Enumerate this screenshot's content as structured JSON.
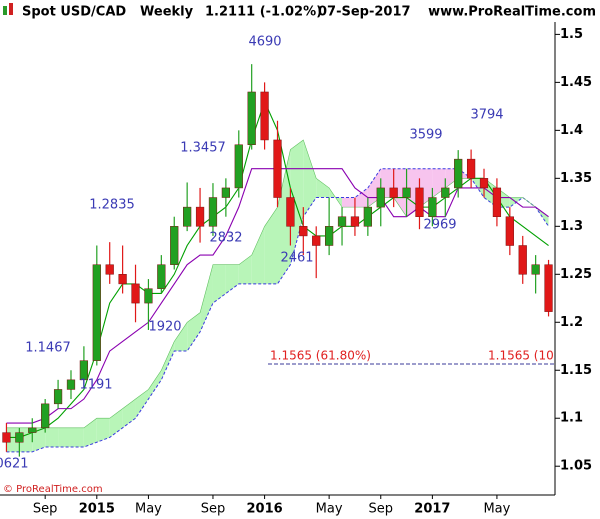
{
  "chart_data": {
    "type": "candlestick",
    "title": "Spot USD/CAD",
    "period": "Weekly",
    "last_price": "1.2111 (-1.02%)",
    "date": "07-Sep-2017",
    "source": "www.ProRealTime.com",
    "footer": "© ProRealTime.com",
    "categories": [
      null,
      null,
      null,
      "Sep",
      null,
      null,
      null,
      "2015",
      null,
      null,
      null,
      "May",
      null,
      null,
      null,
      null,
      "Sep",
      null,
      null,
      null,
      "2016",
      null,
      null,
      null,
      null,
      "May",
      null,
      null,
      null,
      "Sep",
      null,
      null,
      null,
      "2017",
      null,
      null,
      null,
      null,
      "May",
      null,
      null,
      null,
      null
    ],
    "open": [
      1.085,
      1.075,
      1.085,
      1.09,
      1.115,
      1.13,
      1.14,
      1.16,
      1.26,
      1.25,
      1.24,
      1.22,
      1.235,
      1.26,
      1.3,
      1.32,
      1.3,
      1.33,
      1.34,
      1.385,
      1.44,
      1.39,
      1.33,
      1.3,
      1.29,
      1.28,
      1.3,
      1.31,
      1.3,
      1.32,
      1.34,
      1.33,
      1.34,
      1.31,
      1.33,
      1.34,
      1.37,
      1.35,
      1.34,
      1.31,
      1.28,
      1.25,
      1.26
    ],
    "high": [
      1.095,
      1.09,
      1.1,
      1.12,
      1.14,
      1.15,
      1.175,
      1.28,
      1.2835,
      1.28,
      1.26,
      1.245,
      1.27,
      1.31,
      1.3457,
      1.34,
      1.345,
      1.35,
      1.4,
      1.469,
      1.45,
      1.41,
      1.34,
      1.32,
      1.3,
      1.33,
      1.32,
      1.33,
      1.33,
      1.35,
      1.3599,
      1.36,
      1.35,
      1.34,
      1.35,
      1.3794,
      1.38,
      1.36,
      1.35,
      1.32,
      1.29,
      1.27,
      1.265
    ],
    "low": [
      1.065,
      1.06,
      1.075,
      1.085,
      1.11,
      1.12,
      1.135,
      1.155,
      1.24,
      1.23,
      1.2,
      1.192,
      1.23,
      1.255,
      1.295,
      1.283,
      1.29,
      1.31,
      1.33,
      1.38,
      1.38,
      1.32,
      1.28,
      1.27,
      1.246,
      1.27,
      1.28,
      1.29,
      1.29,
      1.3,
      1.32,
      1.31,
      1.297,
      1.3,
      1.31,
      1.33,
      1.34,
      1.33,
      1.3,
      1.27,
      1.24,
      1.23,
      1.2061
    ],
    "close": [
      1.075,
      1.085,
      1.09,
      1.115,
      1.13,
      1.14,
      1.16,
      1.26,
      1.25,
      1.24,
      1.22,
      1.235,
      1.26,
      1.3,
      1.32,
      1.3,
      1.33,
      1.34,
      1.385,
      1.44,
      1.39,
      1.33,
      1.3,
      1.29,
      1.28,
      1.3,
      1.31,
      1.3,
      1.32,
      1.34,
      1.33,
      1.34,
      1.31,
      1.33,
      1.34,
      1.37,
      1.35,
      1.34,
      1.31,
      1.28,
      1.25,
      1.26,
      1.2111
    ],
    "series": [
      {
        "color": "#00a000",
        "values": [
          1.08,
          1.08,
          1.085,
          1.09,
          1.1,
          1.115,
          1.13,
          1.17,
          1.22,
          1.24,
          1.24,
          1.23,
          1.23,
          1.25,
          1.28,
          1.3,
          1.31,
          1.32,
          1.34,
          1.39,
          1.43,
          1.4,
          1.34,
          1.3,
          1.29,
          1.29,
          1.3,
          1.3,
          1.31,
          1.32,
          1.33,
          1.33,
          1.32,
          1.32,
          1.33,
          1.34,
          1.35,
          1.35,
          1.33,
          1.31,
          1.3,
          1.29,
          1.28
        ]
      },
      {
        "color": "#8a00b0",
        "values": [
          1.095,
          1.095,
          1.095,
          1.1,
          1.11,
          1.11,
          1.12,
          1.14,
          1.17,
          1.18,
          1.19,
          1.2,
          1.22,
          1.24,
          1.26,
          1.27,
          1.27,
          1.29,
          1.32,
          1.36,
          1.36,
          1.36,
          1.36,
          1.36,
          1.36,
          1.36,
          1.36,
          1.34,
          1.33,
          1.33,
          1.31,
          1.31,
          1.32,
          1.31,
          1.31,
          1.34,
          1.34,
          1.34,
          1.33,
          1.33,
          1.32,
          1.32,
          1.31
        ]
      }
    ],
    "cloud_a": [
      1.09,
      1.09,
      1.09,
      1.09,
      1.09,
      1.09,
      1.09,
      1.1,
      1.1,
      1.11,
      1.12,
      1.13,
      1.15,
      1.18,
      1.2,
      1.21,
      1.26,
      1.26,
      1.26,
      1.27,
      1.3,
      1.32,
      1.38,
      1.39,
      1.35,
      1.34,
      1.32,
      1.32,
      1.32,
      1.33,
      1.33,
      1.31,
      1.32,
      1.33,
      1.34,
      1.35,
      1.35,
      1.35,
      1.34,
      1.33,
      1.33,
      1.32,
      1.31
    ],
    "cloud_b": [
      1.065,
      1.065,
      1.065,
      1.07,
      1.07,
      1.07,
      1.07,
      1.075,
      1.08,
      1.09,
      1.1,
      1.12,
      1.14,
      1.17,
      1.17,
      1.19,
      1.22,
      1.23,
      1.24,
      1.24,
      1.24,
      1.24,
      1.26,
      1.31,
      1.33,
      1.33,
      1.33,
      1.33,
      1.34,
      1.36,
      1.36,
      1.36,
      1.36,
      1.36,
      1.36,
      1.36,
      1.35,
      1.33,
      1.32,
      1.32,
      1.33,
      1.32,
      1.3
    ],
    "cloud_colors": [
      "#b8f5b8",
      "#f7c4ee"
    ],
    "candle_colors": [
      "#e01818",
      "#22a022"
    ],
    "fib_level": 1.1565,
    "fib_labels": [
      "1.1565 (61.80%)",
      "1.1565 (10"
    ],
    "annotations": [
      "4690",
      "1.3457",
      "1.2835",
      "2832",
      "2461",
      "1920",
      "1.1467",
      "1191",
      "0621",
      "3599",
      "3794",
      "2969"
    ],
    "ylim": [
      1.02,
      1.515
    ],
    "yticks": [
      1.05,
      1.1,
      1.15,
      1.2,
      1.25,
      1.3,
      1.35,
      1.4,
      1.45,
      1.5
    ]
  }
}
